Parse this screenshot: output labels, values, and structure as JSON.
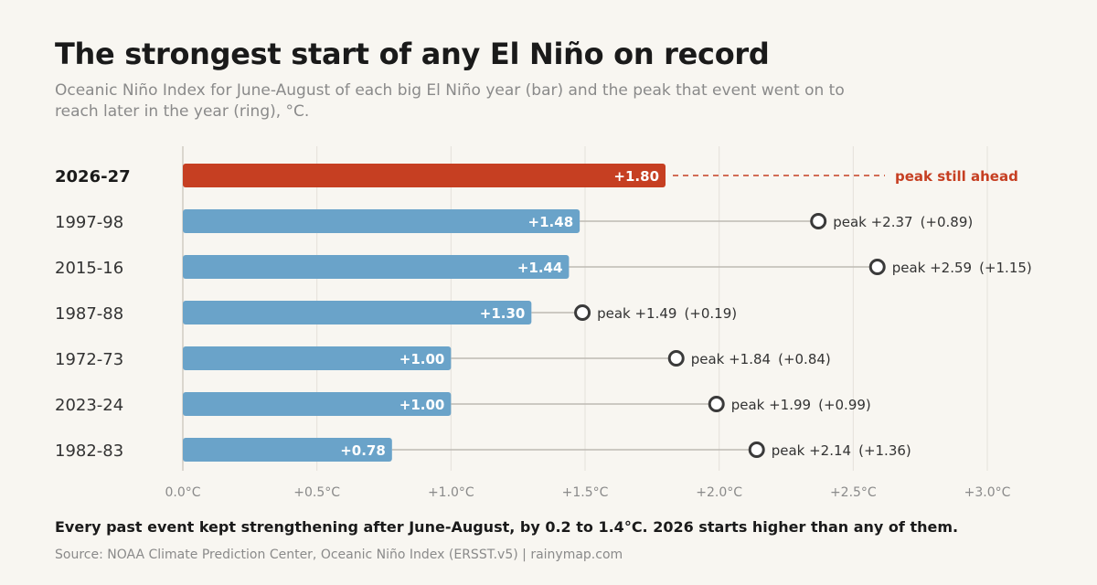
{
  "title": "The strongest start of any El Niño on record",
  "subtitle": "Oceanic Niño Index for June-August of each big El Niño year (bar) and the peak that event went on to reach later in the year (ring), °C.",
  "takeaway": "Every past event kept strengthening after June-August, by 0.2 to 1.4°C. 2026 starts higher than any of them.",
  "source": "Source: NOAA Climate Prediction Center, Oceanic Niño Index (ERSST.v5)  |  rainymap.com",
  "colors": {
    "highlight": "#c63f22",
    "bar": "#6aa3c9",
    "ring": "#3a3a3a",
    "connector": "#bdbab3",
    "grid": "#e4e1da",
    "text": "#1a1a1a",
    "muted": "#8a8a8a"
  },
  "chart_data": {
    "type": "bar",
    "orientation": "horizontal",
    "xlim": [
      0,
      3.0
    ],
    "x_ticks": [
      {
        "value": 0,
        "label": "0.0°C"
      },
      {
        "value": 0.5,
        "label": "+0.5°C"
      },
      {
        "value": 1.0,
        "label": "+1.0°C"
      },
      {
        "value": 1.5,
        "label": "+1.5°C"
      },
      {
        "value": 2.0,
        "label": "+2.0°C"
      },
      {
        "value": 2.5,
        "label": "+2.5°C"
      },
      {
        "value": 3.0,
        "label": "+3.0°C"
      }
    ],
    "grid": true,
    "rows": [
      {
        "year": "2026-27",
        "jja": 1.8,
        "jja_label": "+1.80",
        "peak": null,
        "peak_label": "peak still ahead",
        "change_label": "",
        "highlight": true
      },
      {
        "year": "1997-98",
        "jja": 1.48,
        "jja_label": "+1.48",
        "peak": 2.37,
        "peak_label": "peak +2.37",
        "change_label": "(+0.89)",
        "highlight": false
      },
      {
        "year": "2015-16",
        "jja": 1.44,
        "jja_label": "+1.44",
        "peak": 2.59,
        "peak_label": "peak +2.59",
        "change_label": "(+1.15)",
        "highlight": false
      },
      {
        "year": "1987-88",
        "jja": 1.3,
        "jja_label": "+1.30",
        "peak": 1.49,
        "peak_label": "peak +1.49",
        "change_label": "(+0.19)",
        "highlight": false
      },
      {
        "year": "1972-73",
        "jja": 1.0,
        "jja_label": "+1.00",
        "peak": 1.84,
        "peak_label": "peak +1.84",
        "change_label": "(+0.84)",
        "highlight": false
      },
      {
        "year": "2023-24",
        "jja": 1.0,
        "jja_label": "+1.00",
        "peak": 1.99,
        "peak_label": "peak +1.99",
        "change_label": "(+0.99)",
        "highlight": false
      },
      {
        "year": "1982-83",
        "jja": 0.78,
        "jja_label": "+0.78",
        "peak": 2.14,
        "peak_label": "peak +2.14",
        "change_label": "(+1.36)",
        "highlight": false
      }
    ]
  }
}
